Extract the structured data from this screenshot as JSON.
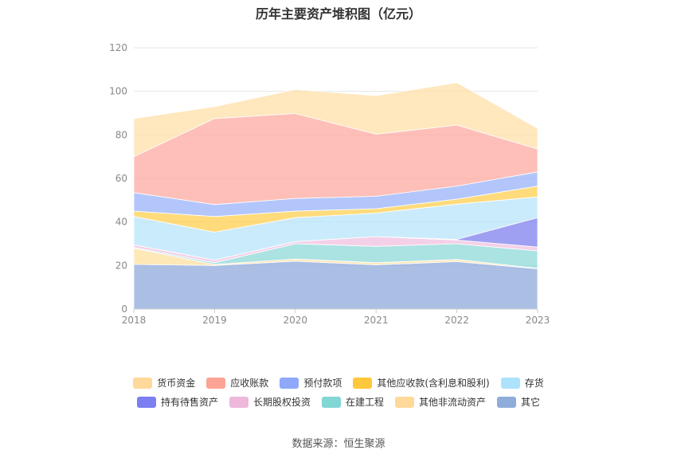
{
  "chart_data": {
    "type": "area",
    "stacked": true,
    "title": "历年主要资产堆积图（亿元）",
    "categories": [
      "2018",
      "2019",
      "2020",
      "2021",
      "2022",
      "2023"
    ],
    "ylim": [
      0,
      120
    ],
    "yticks": [
      0,
      20,
      40,
      60,
      80,
      100,
      120
    ],
    "grid": true,
    "legend_position": "bottom",
    "series": [
      {
        "name": "其它",
        "color": "#8faadc",
        "values": [
          20.5,
          20.0,
          22.0,
          20.3,
          21.8,
          18.5
        ]
      },
      {
        "name": "其他非流动资产",
        "color": "#ffe0a0",
        "values": [
          7.5,
          0.5,
          1.0,
          1.0,
          1.0,
          0.2
        ]
      },
      {
        "name": "在建工程",
        "color": "#8fd8d8",
        "values": [
          0.3,
          0.8,
          7.0,
          7.5,
          7.2,
          8.0
        ]
      },
      {
        "name": "长期股权投资",
        "color": "#f0c0e0",
        "values": [
          1.2,
          1.2,
          1.0,
          4.5,
          1.7,
          1.8
        ]
      },
      {
        "name": "持有待售资产",
        "color": "#8080ee",
        "values": [
          0,
          0,
          0,
          0,
          0.3,
          13.5
        ]
      },
      {
        "name": "存货",
        "color": "#b8e4fa",
        "values": [
          13.0,
          12.8,
          11.0,
          10.8,
          16.2,
          9.5
        ]
      },
      {
        "name": "其他应收款(含利息和股利)",
        "color": "#ffcf50",
        "values": [
          2.5,
          7.2,
          3.0,
          2.0,
          2.3,
          5.0
        ]
      },
      {
        "name": "预付款项",
        "color": "#99b3fa",
        "values": [
          8.5,
          5.5,
          5.8,
          5.7,
          6.0,
          6.5
        ]
      },
      {
        "name": "应收账款",
        "color": "#fcaaa0",
        "values": [
          16.5,
          39.5,
          39.0,
          28.5,
          28.0,
          10.5
        ]
      },
      {
        "name": "货币资金",
        "color": "#ffdfa8",
        "values": [
          17.5,
          5.5,
          11.0,
          17.7,
          19.5,
          9.5
        ]
      }
    ],
    "legend_order": [
      "货币资金",
      "应收账款",
      "预付款项",
      "其他应收款(含利息和股利)",
      "存货",
      "持有待售资产",
      "长期股权投资",
      "在建工程",
      "其他非流动资产",
      "其它"
    ],
    "legend_colors": {
      "货币资金": "#ffd99a",
      "应收账款": "#fca396",
      "预付款项": "#8fa8fa",
      "其他应收款(含利息和股利)": "#ffc73a",
      "存货": "#ade2fb",
      "持有待售资产": "#7b7ff0",
      "长期股权投资": "#edb8db",
      "在建工程": "#82d6d4",
      "其他非流动资产": "#ffd99a",
      "其它": "#8fadd9"
    }
  },
  "source": "数据来源：恒生聚源"
}
